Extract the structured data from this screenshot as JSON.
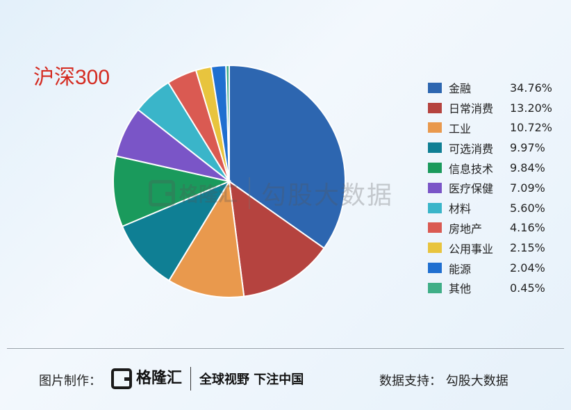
{
  "header": {
    "title": "沪深300"
  },
  "chart_data": {
    "type": "pie",
    "title": "沪深300",
    "slices": [
      {
        "label": "金融",
        "value": 34.76,
        "display": "34.76%",
        "color": "#2d66b0"
      },
      {
        "label": "日常消费",
        "value": 13.2,
        "display": "13.20%",
        "color": "#b5433f"
      },
      {
        "label": "工业",
        "value": 10.72,
        "display": "10.72%",
        "color": "#e9994d"
      },
      {
        "label": "可选消费",
        "value": 9.97,
        "display": "9.97%",
        "color": "#0f7f94"
      },
      {
        "label": "信息技术",
        "value": 9.84,
        "display": "9.84%",
        "color": "#1a9a5c"
      },
      {
        "label": "医疗保健",
        "value": 7.09,
        "display": "7.09%",
        "color": "#7a55c7"
      },
      {
        "label": "材料",
        "value": 5.6,
        "display": "5.60%",
        "color": "#3ab5c9"
      },
      {
        "label": "房地产",
        "value": 4.16,
        "display": "4.16%",
        "color": "#da5a52"
      },
      {
        "label": "公用事业",
        "value": 2.15,
        "display": "2.15%",
        "color": "#e8c43e"
      },
      {
        "label": "能源",
        "value": 2.04,
        "display": "2.04%",
        "color": "#1f6fd0"
      },
      {
        "label": "其他",
        "value": 0.45,
        "display": "0.45%",
        "color": "#3fae87"
      }
    ],
    "legend": "right",
    "start": "top",
    "direction": "clockwise"
  },
  "watermark": {
    "brand": "格隆汇",
    "text": "勾股大数据"
  },
  "footer": {
    "made_by_label": "图片制作：",
    "logo_brand": "格隆汇",
    "slogan": "全球视野 下注中国",
    "data_support": "数据支持：  勾股大数据"
  }
}
